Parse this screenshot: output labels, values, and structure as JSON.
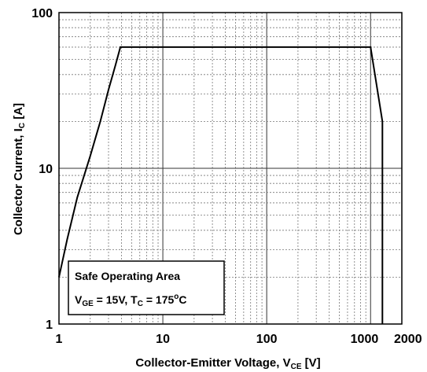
{
  "chart_data": {
    "type": "line",
    "xlabel": {
      "main": "Collector-Emitter Voltage, V",
      "sub": "CE",
      "unit": " [V]"
    },
    "ylabel": {
      "main": "Collector Current, I",
      "sub": "C",
      "unit": " [A]"
    },
    "xscale": "log",
    "yscale": "log",
    "xlim": [
      1,
      2000
    ],
    "ylim": [
      1,
      100
    ],
    "grid": true,
    "x_ticks": [
      {
        "value": 1,
        "label": "1"
      },
      {
        "value": 10,
        "label": "10"
      },
      {
        "value": 100,
        "label": "100"
      },
      {
        "value": 1000,
        "label": "1000"
      },
      {
        "value": 2000,
        "label": "2000"
      }
    ],
    "y_ticks": [
      {
        "value": 1,
        "label": "1"
      },
      {
        "value": 10,
        "label": "10"
      },
      {
        "value": 100,
        "label": "100"
      }
    ],
    "legend": {
      "placement": "bottom-left",
      "title": "Safe Operating Area",
      "condition": {
        "v_main": "V",
        "v_sub": "GE",
        "v_val": " = 15V, T",
        "t_sub": "C",
        "t_val": " = 175",
        "t_sup": "o",
        "t_unit": "C"
      }
    },
    "series": [
      {
        "color": "#000000",
        "x": [
          1,
          1.2,
          1.5,
          2,
          2.5,
          3,
          3.5,
          3.9,
          1000,
          1300,
          1300
        ],
        "y": [
          2,
          3.5,
          6.5,
          12,
          20,
          32,
          46,
          60,
          60,
          20,
          1
        ]
      }
    ]
  }
}
